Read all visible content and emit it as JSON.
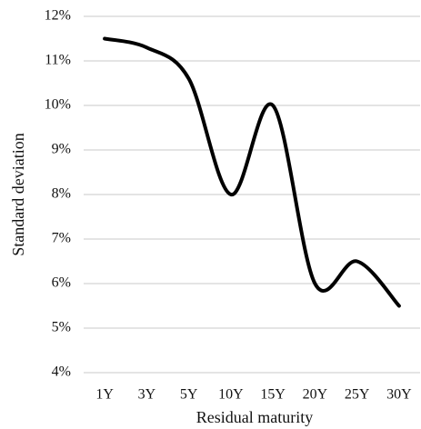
{
  "chart_data": {
    "type": "line",
    "x_label": "Residual maturity",
    "y_label": "Standard deviation",
    "categories": [
      "1Y",
      "3Y",
      "5Y",
      "10Y",
      "15Y",
      "20Y",
      "25Y",
      "30Y"
    ],
    "values": [
      11.5,
      11.3,
      10.6,
      8.0,
      10.0,
      6.0,
      6.5,
      5.5
    ],
    "color": "#000000",
    "smooth": true,
    "grid": true,
    "ylim": [
      4,
      12
    ],
    "yticks": [
      {
        "value": 4,
        "label": "4%"
      },
      {
        "value": 5,
        "label": "5%"
      },
      {
        "value": 6,
        "label": "6%"
      },
      {
        "value": 7,
        "label": "7%"
      },
      {
        "value": 8,
        "label": "8%"
      },
      {
        "value": 9,
        "label": "9%"
      },
      {
        "value": 10,
        "label": "10%"
      },
      {
        "value": 11,
        "label": "11%"
      },
      {
        "value": 12,
        "label": "12%"
      }
    ]
  }
}
